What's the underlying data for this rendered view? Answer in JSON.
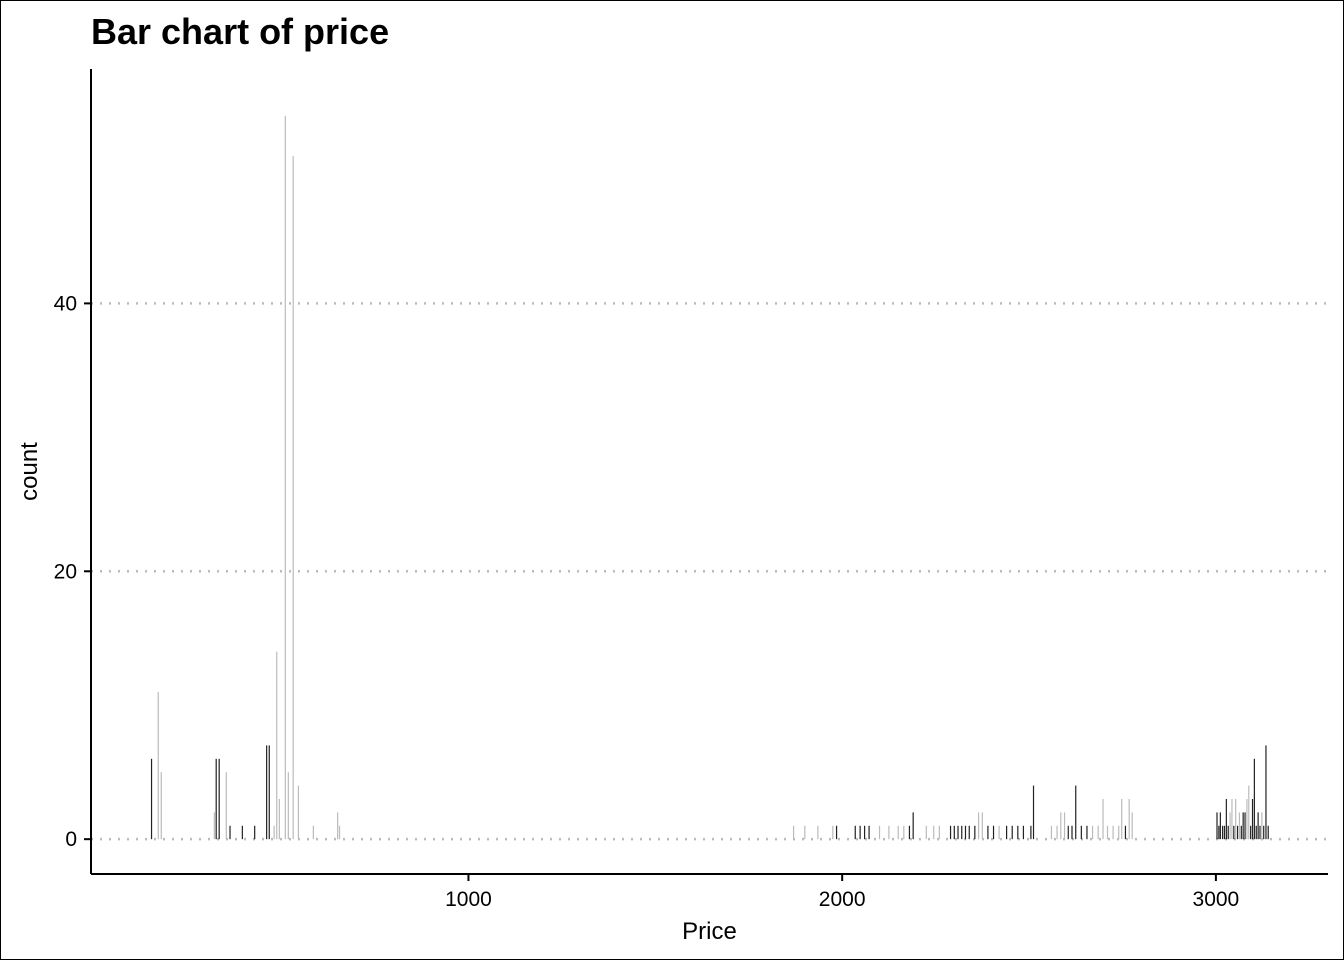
{
  "chart_data": {
    "type": "bar",
    "title": "Bar chart of price",
    "xlabel": "Price",
    "ylabel": "count",
    "xlim": [
      -10,
      3300
    ],
    "ylim": [
      -2.6,
      57.5
    ],
    "x_ticks": [
      1000,
      2000,
      3000
    ],
    "y_ticks": [
      0,
      20,
      40
    ],
    "grid": "horizontal dotted",
    "colors": {
      "bar_dark": "#222222",
      "bar_light": "#bbbbbb",
      "grid": "#bbbbbb",
      "axis": "#000000"
    },
    "bars": [
      {
        "x": 152,
        "count": 6,
        "shade": "dark"
      },
      {
        "x": 170,
        "count": 11,
        "shade": "light"
      },
      {
        "x": 178,
        "count": 5,
        "shade": "light"
      },
      {
        "x": 320,
        "count": 2,
        "shade": "light"
      },
      {
        "x": 325,
        "count": 6,
        "shade": "dark"
      },
      {
        "x": 333,
        "count": 6,
        "shade": "dark"
      },
      {
        "x": 352,
        "count": 5,
        "shade": "light"
      },
      {
        "x": 362,
        "count": 1,
        "shade": "dark"
      },
      {
        "x": 395,
        "count": 1,
        "shade": "dark"
      },
      {
        "x": 428,
        "count": 1,
        "shade": "dark"
      },
      {
        "x": 460,
        "count": 7,
        "shade": "dark"
      },
      {
        "x": 467,
        "count": 7,
        "shade": "dark"
      },
      {
        "x": 480,
        "count": 1,
        "shade": "light"
      },
      {
        "x": 487,
        "count": 14,
        "shade": "light"
      },
      {
        "x": 494,
        "count": 3,
        "shade": "light"
      },
      {
        "x": 510,
        "count": 54,
        "shade": "light"
      },
      {
        "x": 518,
        "count": 5,
        "shade": "light"
      },
      {
        "x": 531,
        "count": 51,
        "shade": "light"
      },
      {
        "x": 545,
        "count": 4,
        "shade": "light"
      },
      {
        "x": 585,
        "count": 1,
        "shade": "light"
      },
      {
        "x": 650,
        "count": 2,
        "shade": "light"
      },
      {
        "x": 655,
        "count": 1,
        "shade": "light"
      },
      {
        "x": 1870,
        "count": 1,
        "shade": "light"
      },
      {
        "x": 1900,
        "count": 1,
        "shade": "light"
      },
      {
        "x": 1935,
        "count": 1,
        "shade": "light"
      },
      {
        "x": 1975,
        "count": 1,
        "shade": "light"
      },
      {
        "x": 1985,
        "count": 1,
        "shade": "dark"
      },
      {
        "x": 2035,
        "count": 1,
        "shade": "dark"
      },
      {
        "x": 2048,
        "count": 1,
        "shade": "dark"
      },
      {
        "x": 2060,
        "count": 1,
        "shade": "dark"
      },
      {
        "x": 2072,
        "count": 1,
        "shade": "dark"
      },
      {
        "x": 2100,
        "count": 1,
        "shade": "light"
      },
      {
        "x": 2125,
        "count": 1,
        "shade": "light"
      },
      {
        "x": 2150,
        "count": 1,
        "shade": "light"
      },
      {
        "x": 2165,
        "count": 1,
        "shade": "light"
      },
      {
        "x": 2180,
        "count": 1,
        "shade": "dark"
      },
      {
        "x": 2190,
        "count": 2,
        "shade": "dark"
      },
      {
        "x": 2225,
        "count": 1,
        "shade": "light"
      },
      {
        "x": 2245,
        "count": 1,
        "shade": "light"
      },
      {
        "x": 2260,
        "count": 1,
        "shade": "light"
      },
      {
        "x": 2290,
        "count": 1,
        "shade": "dark"
      },
      {
        "x": 2300,
        "count": 1,
        "shade": "dark"
      },
      {
        "x": 2310,
        "count": 1,
        "shade": "dark"
      },
      {
        "x": 2320,
        "count": 1,
        "shade": "dark"
      },
      {
        "x": 2330,
        "count": 1,
        "shade": "dark"
      },
      {
        "x": 2340,
        "count": 1,
        "shade": "dark"
      },
      {
        "x": 2355,
        "count": 1,
        "shade": "dark"
      },
      {
        "x": 2365,
        "count": 2,
        "shade": "light"
      },
      {
        "x": 2375,
        "count": 2,
        "shade": "light"
      },
      {
        "x": 2390,
        "count": 1,
        "shade": "dark"
      },
      {
        "x": 2405,
        "count": 1,
        "shade": "dark"
      },
      {
        "x": 2420,
        "count": 1,
        "shade": "light"
      },
      {
        "x": 2440,
        "count": 1,
        "shade": "dark"
      },
      {
        "x": 2455,
        "count": 1,
        "shade": "dark"
      },
      {
        "x": 2470,
        "count": 1,
        "shade": "dark"
      },
      {
        "x": 2485,
        "count": 1,
        "shade": "dark"
      },
      {
        "x": 2505,
        "count": 1,
        "shade": "dark"
      },
      {
        "x": 2512,
        "count": 4,
        "shade": "dark"
      },
      {
        "x": 2560,
        "count": 1,
        "shade": "light"
      },
      {
        "x": 2575,
        "count": 1,
        "shade": "light"
      },
      {
        "x": 2585,
        "count": 2,
        "shade": "light"
      },
      {
        "x": 2595,
        "count": 2,
        "shade": "light"
      },
      {
        "x": 2605,
        "count": 1,
        "shade": "dark"
      },
      {
        "x": 2615,
        "count": 1,
        "shade": "dark"
      },
      {
        "x": 2625,
        "count": 4,
        "shade": "dark"
      },
      {
        "x": 2640,
        "count": 1,
        "shade": "dark"
      },
      {
        "x": 2655,
        "count": 1,
        "shade": "dark"
      },
      {
        "x": 2670,
        "count": 1,
        "shade": "light"
      },
      {
        "x": 2685,
        "count": 1,
        "shade": "light"
      },
      {
        "x": 2698,
        "count": 3,
        "shade": "light"
      },
      {
        "x": 2710,
        "count": 1,
        "shade": "light"
      },
      {
        "x": 2725,
        "count": 1,
        "shade": "light"
      },
      {
        "x": 2740,
        "count": 1,
        "shade": "light"
      },
      {
        "x": 2748,
        "count": 3,
        "shade": "light"
      },
      {
        "x": 2758,
        "count": 1,
        "shade": "dark"
      },
      {
        "x": 2768,
        "count": 3,
        "shade": "light"
      },
      {
        "x": 2776,
        "count": 2,
        "shade": "light"
      },
      {
        "x": 3003,
        "count": 2,
        "shade": "dark"
      },
      {
        "x": 3008,
        "count": 1,
        "shade": "dark"
      },
      {
        "x": 3012,
        "count": 2,
        "shade": "dark"
      },
      {
        "x": 3018,
        "count": 1,
        "shade": "dark"
      },
      {
        "x": 3023,
        "count": 1,
        "shade": "dark"
      },
      {
        "x": 3028,
        "count": 3,
        "shade": "dark"
      },
      {
        "x": 3033,
        "count": 1,
        "shade": "dark"
      },
      {
        "x": 3038,
        "count": 2,
        "shade": "light"
      },
      {
        "x": 3043,
        "count": 3,
        "shade": "light"
      },
      {
        "x": 3048,
        "count": 1,
        "shade": "dark"
      },
      {
        "x": 3053,
        "count": 3,
        "shade": "light"
      },
      {
        "x": 3058,
        "count": 1,
        "shade": "dark"
      },
      {
        "x": 3063,
        "count": 2,
        "shade": "light"
      },
      {
        "x": 3068,
        "count": 1,
        "shade": "dark"
      },
      {
        "x": 3073,
        "count": 2,
        "shade": "dark"
      },
      {
        "x": 3078,
        "count": 2,
        "shade": "dark"
      },
      {
        "x": 3083,
        "count": 3,
        "shade": "light"
      },
      {
        "x": 3088,
        "count": 4,
        "shade": "light"
      },
      {
        "x": 3093,
        "count": 1,
        "shade": "dark"
      },
      {
        "x": 3098,
        "count": 3,
        "shade": "dark"
      },
      {
        "x": 3103,
        "count": 6,
        "shade": "dark"
      },
      {
        "x": 3108,
        "count": 1,
        "shade": "dark"
      },
      {
        "x": 3113,
        "count": 2,
        "shade": "dark"
      },
      {
        "x": 3118,
        "count": 1,
        "shade": "dark"
      },
      {
        "x": 3123,
        "count": 2,
        "shade": "light"
      },
      {
        "x": 3128,
        "count": 1,
        "shade": "dark"
      },
      {
        "x": 3134,
        "count": 7,
        "shade": "dark"
      },
      {
        "x": 3140,
        "count": 1,
        "shade": "dark"
      }
    ]
  }
}
